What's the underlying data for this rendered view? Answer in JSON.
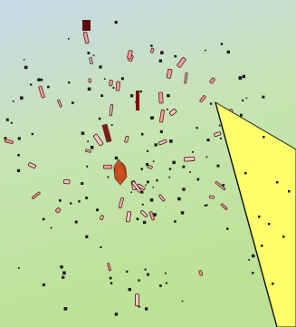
{
  "scene": {
    "background_top": "#c9d8e9",
    "background_mid": "#c6e4b4",
    "background_bottom": "#bde294",
    "particle_color": "#1a1a1a",
    "fragment_outline": "#4a1010",
    "fragment_fill": "#f2c9c9",
    "core_color": "#d9581f",
    "callout_fill": "#ffff6b",
    "callout_stroke": "#222222"
  }
}
